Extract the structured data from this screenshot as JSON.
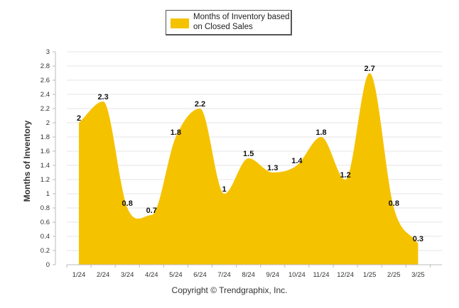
{
  "chart_data": {
    "type": "area",
    "categories": [
      "1/24",
      "2/24",
      "3/24",
      "4/24",
      "5/24",
      "6/24",
      "7/24",
      "8/24",
      "9/24",
      "10/24",
      "11/24",
      "12/24",
      "1/25",
      "2/25",
      "3/25"
    ],
    "series": [
      {
        "name": "Months of Inventory based on Closed Sales",
        "values": [
          2,
          2.3,
          0.8,
          0.7,
          1.8,
          2.2,
          1,
          1.5,
          1.3,
          1.4,
          1.8,
          1.2,
          2.7,
          0.8,
          0.3
        ],
        "labels": [
          "2",
          "2.3",
          "0.8",
          "0.7",
          "1.8",
          "2.2",
          "1",
          "1.5",
          "1.3",
          "1.4",
          "1.8",
          "1.2",
          "2.7",
          "0.8",
          "0.3"
        ],
        "color": "#f5c200"
      }
    ],
    "ylabel": "Months of Inventory",
    "ylim": [
      0,
      3
    ],
    "yticks": [
      "0",
      "0.2",
      "0.4",
      "0.6",
      "0.8",
      "1",
      "1.2",
      "1.4",
      "1.6",
      "1.8",
      "2",
      "2.2",
      "2.4",
      "2.6",
      "2.8",
      "3"
    ],
    "grid": true,
    "legend": "top"
  },
  "legend": {
    "label": "Months of Inventory based on Closed Sales",
    "color": "#f5c200"
  },
  "copyright": "Copyright © Trendgraphix, Inc."
}
